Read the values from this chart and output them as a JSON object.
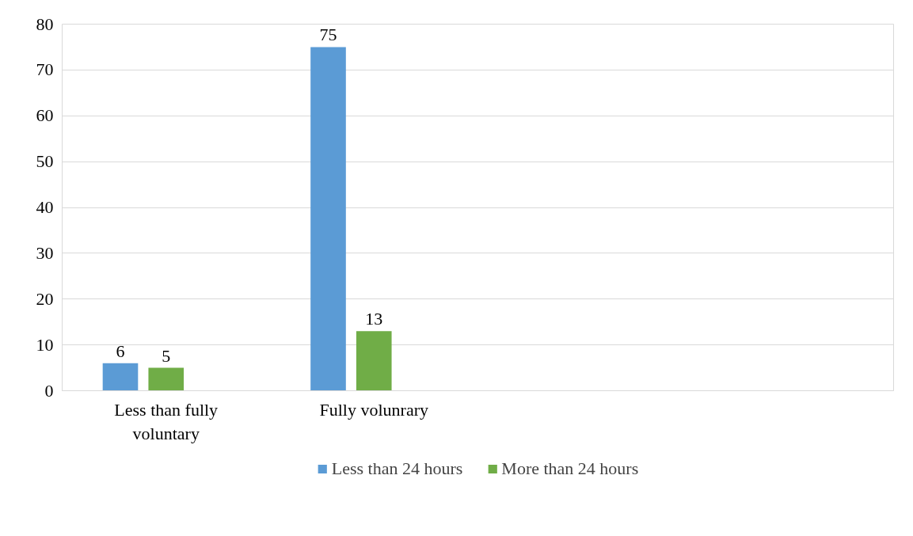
{
  "chart_data": {
    "type": "bar",
    "categories": [
      "Less than fully voluntary",
      "Fully volunrary",
      null,
      null
    ],
    "series": [
      {
        "name": "Less than 24 hours",
        "color": "#5b9bd5",
        "values": [
          6,
          75,
          null,
          null
        ]
      },
      {
        "name": "More than 24 hours",
        "color": "#70ad47",
        "values": [
          5,
          13,
          null,
          null
        ]
      }
    ],
    "ylim": [
      0,
      80
    ],
    "yticks": [
      0,
      10,
      20,
      30,
      40,
      50,
      60,
      70,
      80
    ],
    "grid": "y",
    "legend": "bottom",
    "data_labels": true
  }
}
